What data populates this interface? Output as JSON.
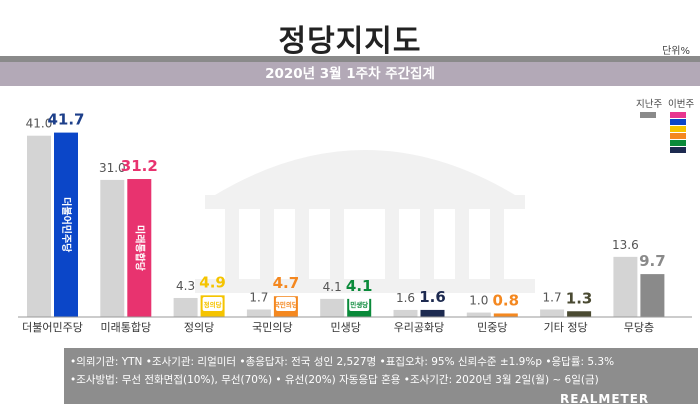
{
  "header": {
    "title": "정당지지도",
    "unit": "단위%",
    "subtitle": "2020년 3월 1주차 주간집계"
  },
  "legend": {
    "prev_label": "지난주",
    "curr_label": "이번주",
    "curr_colors": [
      "#e8368f",
      "#0b46c8",
      "#f5c400",
      "#f48820",
      "#0a8a3a",
      "#1d2a50"
    ]
  },
  "chart_data": {
    "type": "bar",
    "categories": [
      "더불어민주당",
      "미래통합당",
      "정의당",
      "국민의당",
      "민생당",
      "우리공화당",
      "민중당",
      "기타 정당",
      "무당층"
    ],
    "series": [
      {
        "name": "지난주",
        "values": [
          41.0,
          31.0,
          4.3,
          1.7,
          4.1,
          1.6,
          1.0,
          1.7,
          13.6
        ]
      },
      {
        "name": "이번주",
        "values": [
          41.7,
          31.2,
          4.9,
          4.7,
          4.1,
          1.6,
          0.8,
          1.3,
          9.7
        ]
      }
    ],
    "value_labels_prev": [
      "41.0",
      "31.0",
      "4.3",
      "1.7",
      "4.1",
      "1.6",
      "1.0",
      "1.7",
      "13.6"
    ],
    "value_labels_curr": [
      "41.7",
      "31.2",
      "4.9",
      "4.7",
      "4.1",
      "1.6",
      "0.8",
      "1.3",
      "9.7"
    ],
    "prev_color": "#d4d4d4",
    "curr_colors": [
      "#0b46c8",
      "#e8336f",
      "#f5c400",
      "#f48820",
      "#0a8a3a",
      "#1d2a50",
      "#f48820",
      "#4a4a32",
      "#8a8a8a"
    ],
    "label_colors": [
      "#1d3f8a",
      "#e8336f",
      "#f5c400",
      "#f48820",
      "#0a8a3a",
      "#1d2a50",
      "#f48820",
      "#4a4a32",
      "#8a8a8a"
    ],
    "bar_texts": [
      "더불어민주당",
      "미래통합당",
      "정의당",
      "국민의당",
      "민생당",
      "",
      "",
      "",
      ""
    ],
    "ylim": [
      0,
      45
    ],
    "grid": false
  },
  "footer": {
    "line1": "•의뢰기관: YTN  •조사기관: 리얼미터  •총응답자: 전국 성인 2,527명  •표집오차: 95% 신뢰수준 ±1.9%p  •응답률: 5.3%",
    "line2": "•조사방법: 무선 전화면접(10%), 무선(70%) • 유선(20%) 자동응답 혼용  •조사기간: 2020년 3월 2일(월) ~ 6일(금)",
    "brand": "REALMETER"
  }
}
